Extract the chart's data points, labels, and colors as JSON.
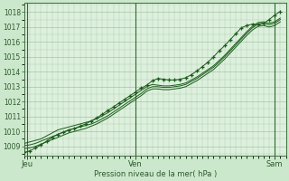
{
  "title": "",
  "xlabel": "Pression niveau de la mer( hPa )",
  "ylabel": "",
  "bg_color": "#cce8cc",
  "plot_bg_color": "#ddf0dd",
  "grid_color": "#99bb99",
  "line_color": "#1a5c1a",
  "marker_color": "#1a5c1a",
  "yticks": [
    1009,
    1010,
    1011,
    1012,
    1013,
    1014,
    1015,
    1016,
    1017,
    1018
  ],
  "ylim": [
    1008.4,
    1018.6
  ],
  "xlim": [
    0,
    47
  ],
  "xtick_positions": [
    0.5,
    20,
    45
  ],
  "xtick_labels": [
    "Jeu",
    "Ven",
    "Sam"
  ],
  "n_points": 47,
  "line1_y": [
    1009.2,
    1009.3,
    1009.4,
    1009.5,
    1009.7,
    1009.9,
    1010.1,
    1010.2,
    1010.3,
    1010.4,
    1010.5,
    1010.6,
    1010.7,
    1010.85,
    1011.05,
    1011.25,
    1011.5,
    1011.75,
    1012.0,
    1012.25,
    1012.5,
    1012.75,
    1013.0,
    1013.15,
    1013.1,
    1013.05,
    1013.05,
    1013.1,
    1013.15,
    1013.25,
    1013.45,
    1013.65,
    1013.9,
    1014.15,
    1014.4,
    1014.75,
    1015.1,
    1015.5,
    1015.9,
    1016.3,
    1016.7,
    1017.05,
    1017.3,
    1017.35,
    1017.25,
    1017.35,
    1017.6
  ],
  "line2_y": [
    1009.05,
    1009.1,
    1009.2,
    1009.35,
    1009.5,
    1009.65,
    1009.8,
    1009.95,
    1010.1,
    1010.2,
    1010.3,
    1010.4,
    1010.5,
    1010.65,
    1010.85,
    1011.05,
    1011.3,
    1011.55,
    1011.8,
    1012.05,
    1012.3,
    1012.55,
    1012.85,
    1013.0,
    1013.0,
    1012.95,
    1012.95,
    1013.0,
    1013.05,
    1013.15,
    1013.35,
    1013.55,
    1013.8,
    1014.05,
    1014.3,
    1014.65,
    1015.0,
    1015.4,
    1015.8,
    1016.2,
    1016.6,
    1016.95,
    1017.2,
    1017.25,
    1017.15,
    1017.25,
    1017.5
  ],
  "line3_y": [
    1008.85,
    1008.9,
    1009.0,
    1009.15,
    1009.3,
    1009.45,
    1009.6,
    1009.75,
    1009.9,
    1010.0,
    1010.1,
    1010.2,
    1010.35,
    1010.5,
    1010.7,
    1010.9,
    1011.15,
    1011.4,
    1011.65,
    1011.9,
    1012.15,
    1012.4,
    1012.7,
    1012.85,
    1012.85,
    1012.8,
    1012.8,
    1012.85,
    1012.9,
    1013.0,
    1013.2,
    1013.4,
    1013.65,
    1013.9,
    1014.15,
    1014.5,
    1014.85,
    1015.25,
    1015.65,
    1016.05,
    1016.45,
    1016.8,
    1017.05,
    1017.1,
    1017.0,
    1017.1,
    1017.35
  ],
  "marker_line_x": [
    0,
    1,
    2,
    3,
    4,
    5,
    6,
    7,
    8,
    9,
    10,
    11,
    12,
    13,
    14,
    15,
    16,
    17,
    18,
    19,
    20,
    21,
    22,
    23,
    24,
    25,
    26,
    27,
    28,
    29,
    30,
    31,
    32,
    33,
    34,
    35,
    36,
    37,
    38,
    39,
    40,
    41,
    42,
    43,
    44,
    45,
    46
  ],
  "marker_line_y": [
    1008.6,
    1008.7,
    1008.9,
    1009.1,
    1009.35,
    1009.6,
    1009.8,
    1009.95,
    1010.1,
    1010.2,
    1010.35,
    1010.5,
    1010.7,
    1010.9,
    1011.15,
    1011.4,
    1011.65,
    1011.9,
    1012.15,
    1012.4,
    1012.65,
    1012.9,
    1013.1,
    1013.4,
    1013.55,
    1013.5,
    1013.45,
    1013.45,
    1013.5,
    1013.6,
    1013.8,
    1014.05,
    1014.35,
    1014.65,
    1015.0,
    1015.4,
    1015.75,
    1016.15,
    1016.55,
    1016.95,
    1017.1,
    1017.2,
    1017.15,
    1017.25,
    1017.5,
    1017.8,
    1018.05
  ]
}
